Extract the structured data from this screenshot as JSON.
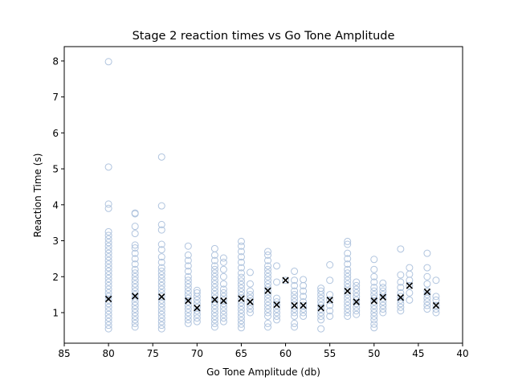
{
  "chart_data": {
    "type": "scatter",
    "title": "Stage 2 reaction times vs Go Tone Amplitude",
    "xlabel": "Go Tone Amplitude (db)",
    "ylabel": "Reaction Time (s)",
    "xlim": [
      85,
      40
    ],
    "ylim": [
      0.15,
      8.4
    ],
    "x_ticks": [
      "85",
      "80",
      "75",
      "70",
      "65",
      "60",
      "55",
      "50",
      "45",
      "40"
    ],
    "y_ticks": [
      "1",
      "2",
      "3",
      "4",
      "5",
      "6",
      "7",
      "8"
    ],
    "grid": false,
    "colors": {
      "points": "#b0c4de",
      "means": "#000000"
    },
    "series": [
      {
        "marker": "open-circle",
        "points": [
          {
            "x": 80,
            "y": [
              0.55,
              0.65,
              0.75,
              0.85,
              0.95,
              1.05,
              1.15,
              1.25,
              1.35,
              1.45,
              1.55,
              1.65,
              1.75,
              1.85,
              1.95,
              2.05,
              2.15,
              2.25,
              2.35,
              2.45,
              2.55,
              2.65,
              2.75,
              2.85,
              2.95,
              3.05,
              3.15,
              3.25,
              3.9,
              4.02,
              5.05,
              7.98
            ]
          },
          {
            "x": 77,
            "y": [
              0.6,
              0.7,
              0.8,
              0.9,
              1.0,
              1.1,
              1.2,
              1.3,
              1.4,
              1.5,
              1.6,
              1.7,
              1.8,
              1.9,
              2.0,
              2.1,
              2.2,
              2.35,
              2.5,
              2.65,
              2.8,
              2.88,
              3.2,
              3.4,
              3.75,
              3.77
            ]
          },
          {
            "x": 74,
            "y": [
              0.55,
              0.65,
              0.75,
              0.85,
              0.95,
              1.05,
              1.15,
              1.25,
              1.35,
              1.45,
              1.55,
              1.65,
              1.75,
              1.85,
              1.95,
              2.05,
              2.15,
              2.25,
              2.4,
              2.55,
              2.75,
              2.9,
              3.3,
              3.45,
              3.97,
              5.33
            ]
          },
          {
            "x": 71,
            "y": [
              0.7,
              0.8,
              0.9,
              1.0,
              1.1,
              1.2,
              1.3,
              1.4,
              1.5,
              1.6,
              1.7,
              1.8,
              1.9,
              2.0,
              2.15,
              2.3,
              2.45,
              2.6,
              2.85
            ]
          },
          {
            "x": 70,
            "y": [
              0.75,
              0.85,
              0.95,
              1.05,
              1.15,
              1.25,
              1.35,
              1.45,
              1.55,
              1.62
            ]
          },
          {
            "x": 68,
            "y": [
              0.6,
              0.7,
              0.8,
              0.9,
              1.0,
              1.1,
              1.2,
              1.3,
              1.4,
              1.5,
              1.6,
              1.7,
              1.8,
              1.9,
              2.0,
              2.1,
              2.2,
              2.3,
              2.45,
              2.6,
              2.78
            ]
          },
          {
            "x": 67,
            "y": [
              0.75,
              0.85,
              0.95,
              1.05,
              1.15,
              1.25,
              1.35,
              1.45,
              1.55,
              1.65,
              1.8,
              2.0,
              2.2,
              2.4,
              2.52
            ]
          },
          {
            "x": 65,
            "y": [
              0.58,
              0.68,
              0.78,
              0.88,
              0.98,
              1.08,
              1.18,
              1.28,
              1.38,
              1.48,
              1.58,
              1.68,
              1.78,
              1.88,
              1.98,
              2.1,
              2.25,
              2.4,
              2.55,
              2.7,
              2.85,
              2.98
            ]
          },
          {
            "x": 64,
            "y": [
              1.0,
              1.1,
              1.2,
              1.3,
              1.4,
              1.5,
              1.6,
              1.8,
              2.12
            ]
          },
          {
            "x": 62,
            "y": [
              0.6,
              0.7,
              0.9,
              1.0,
              1.1,
              1.2,
              1.3,
              1.4,
              1.5,
              1.6,
              1.7,
              1.8,
              1.9,
              2.0,
              2.1,
              2.2,
              2.3,
              2.45,
              2.6,
              2.7
            ]
          },
          {
            "x": 61,
            "y": [
              0.8,
              0.9,
              1.0,
              1.1,
              1.2,
              1.3,
              1.4,
              1.85,
              2.3
            ]
          },
          {
            "x": 60,
            "y": [
              1.9
            ]
          },
          {
            "x": 59,
            "y": [
              0.6,
              0.7,
              0.9,
              1.0,
              1.1,
              1.2,
              1.3,
              1.4,
              1.5,
              1.6,
              1.75,
              1.9,
              2.15
            ]
          },
          {
            "x": 58,
            "y": [
              0.9,
              1.0,
              1.1,
              1.2,
              1.3,
              1.45,
              1.6,
              1.75,
              1.92
            ]
          },
          {
            "x": 56,
            "y": [
              0.55,
              0.8,
              0.9,
              1.0,
              1.1,
              1.2,
              1.3,
              1.4,
              1.5,
              1.6,
              1.68
            ]
          },
          {
            "x": 55,
            "y": [
              0.9,
              1.05,
              1.2,
              1.35,
              1.5,
              1.9,
              2.33
            ]
          },
          {
            "x": 53,
            "y": [
              0.9,
              1.0,
              1.1,
              1.2,
              1.3,
              1.4,
              1.5,
              1.6,
              1.7,
              1.8,
              1.9,
              2.0,
              2.1,
              2.2,
              2.35,
              2.5,
              2.65,
              2.9,
              2.98
            ]
          },
          {
            "x": 52,
            "y": [
              0.95,
              1.05,
              1.15,
              1.25,
              1.35,
              1.45,
              1.55,
              1.65,
              1.75,
              1.85
            ]
          },
          {
            "x": 50,
            "y": [
              0.58,
              0.68,
              0.8,
              0.9,
              1.0,
              1.1,
              1.2,
              1.3,
              1.4,
              1.5,
              1.6,
              1.7,
              1.85,
              2.0,
              2.2,
              2.48
            ]
          },
          {
            "x": 49,
            "y": [
              1.0,
              1.1,
              1.2,
              1.3,
              1.4,
              1.5,
              1.6,
              1.7,
              1.82
            ]
          },
          {
            "x": 47,
            "y": [
              1.05,
              1.15,
              1.25,
              1.35,
              1.45,
              1.55,
              1.7,
              1.85,
              2.05,
              2.77
            ]
          },
          {
            "x": 46,
            "y": [
              1.35,
              1.55,
              1.75,
              1.9,
              2.07,
              2.25
            ]
          },
          {
            "x": 44,
            "y": [
              1.1,
              1.2,
              1.3,
              1.4,
              1.5,
              1.6,
              1.8,
              2.0,
              2.25,
              2.65
            ]
          },
          {
            "x": 43,
            "y": [
              1.0,
              1.1,
              1.2,
              1.35,
              1.45,
              1.9
            ]
          }
        ]
      },
      {
        "marker": "x",
        "points": [
          {
            "x": 80,
            "y": 1.38
          },
          {
            "x": 77,
            "y": 1.46
          },
          {
            "x": 74,
            "y": 1.44
          },
          {
            "x": 71,
            "y": 1.33
          },
          {
            "x": 70,
            "y": 1.13
          },
          {
            "x": 68,
            "y": 1.36
          },
          {
            "x": 67,
            "y": 1.33
          },
          {
            "x": 65,
            "y": 1.39
          },
          {
            "x": 64,
            "y": 1.3
          },
          {
            "x": 62,
            "y": 1.61
          },
          {
            "x": 61,
            "y": 1.22
          },
          {
            "x": 60,
            "y": 1.9
          },
          {
            "x": 59,
            "y": 1.2
          },
          {
            "x": 58,
            "y": 1.2
          },
          {
            "x": 56,
            "y": 1.13
          },
          {
            "x": 55,
            "y": 1.35
          },
          {
            "x": 53,
            "y": 1.6
          },
          {
            "x": 52,
            "y": 1.3
          },
          {
            "x": 50,
            "y": 1.33
          },
          {
            "x": 49,
            "y": 1.43
          },
          {
            "x": 47,
            "y": 1.42
          },
          {
            "x": 46,
            "y": 1.75
          },
          {
            "x": 44,
            "y": 1.58
          },
          {
            "x": 43,
            "y": 1.2
          }
        ]
      }
    ]
  }
}
